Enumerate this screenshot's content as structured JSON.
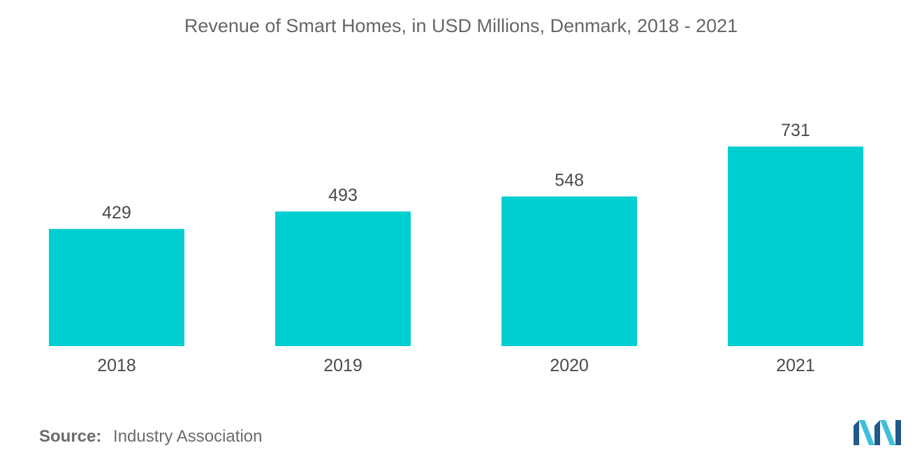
{
  "chart_data": {
    "type": "bar",
    "title": "Revenue of Smart Homes, in USD Millions, Denmark, 2018 - 2021",
    "categories": [
      "2018",
      "2019",
      "2020",
      "2021"
    ],
    "values": [
      429,
      493,
      548,
      731
    ],
    "xlabel": "",
    "ylabel": "",
    "ylim": [
      0,
      731
    ],
    "grid": false,
    "legend": "none",
    "bar_color": "#00CED1"
  },
  "source": {
    "key": "Source:",
    "text": "Industry Association"
  },
  "logo": {
    "icon": "mordor-intelligence-logo-icon",
    "colors": [
      "#1F5A8C",
      "#3FBFD9"
    ]
  }
}
